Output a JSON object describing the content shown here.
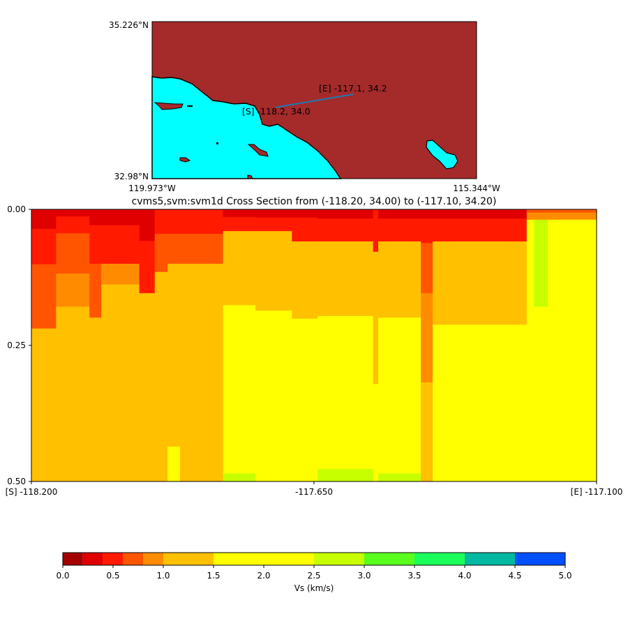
{
  "map": {
    "lat_top_label": "35.226°N",
    "lat_bottom_label": "32.98°N",
    "lon_left_label": "119.973°W",
    "lon_right_label": "115.344°W",
    "start_label": "[S] -118.2, 34.0",
    "end_label": "[E] -117.1, 34.2",
    "land_color": "#a52a2a",
    "water_color": "#00ffff",
    "line_color": "#1f77b4"
  },
  "chart_data": {
    "type": "heatmap",
    "title": "cvms5,svm:svm1d Cross Section from (-118.20, 34.00) to (-117.10, 34.20)",
    "xlim": [
      -118.2,
      -117.1
    ],
    "ylim": [
      0.0,
      0.5
    ],
    "y_inverted": true,
    "x_tick_labels": [
      "[S] -118.200",
      "-117.650",
      "[E] -117.100"
    ],
    "x_ticks": [
      -118.2,
      -117.65,
      -117.1
    ],
    "y_tick_labels": [
      "0.00",
      "0.25",
      "0.50"
    ],
    "y_ticks": [
      0.0,
      0.25,
      0.5
    ],
    "colorbar": {
      "label": "Vs (km/s)",
      "bounds": [
        0.0,
        0.2,
        0.4,
        0.6,
        0.8,
        1.0,
        1.5,
        2.5,
        3.0,
        3.5,
        4.0,
        4.5,
        5.0
      ],
      "colors": [
        "#a50000",
        "#e00000",
        "#ff1a00",
        "#ff5500",
        "#ff8c00",
        "#ffc000",
        "#ffff00",
        "#c8ff00",
        "#5aff1e",
        "#1aff5a",
        "#00b9a0",
        "#0050ff"
      ],
      "tick_labels": [
        "0.0",
        "0.5",
        "1.0",
        "1.5",
        "2.0",
        "2.5",
        "3.0",
        "3.5",
        "4.0",
        "4.5",
        "5.0"
      ],
      "ticks": [
        0.0,
        0.5,
        1.0,
        1.5,
        2.0,
        2.5,
        3.0,
        3.5,
        4.0,
        4.5,
        5.0
      ]
    },
    "columns": [
      {
        "lon": [
          -118.2,
          -118.152
        ],
        "layers": [
          [
            0.036,
            0.3
          ],
          [
            0.101,
            0.5
          ],
          [
            0.219,
            0.7
          ],
          [
            0.5,
            1.25
          ]
        ]
      },
      {
        "lon": [
          -118.152,
          -118.087
        ],
        "layers": [
          [
            0.013,
            0.3
          ],
          [
            0.044,
            0.5
          ],
          [
            0.118,
            0.7
          ],
          [
            0.179,
            0.9
          ],
          [
            0.5,
            1.25
          ]
        ]
      },
      {
        "lon": [
          -118.087,
          -118.064
        ],
        "layers": [
          [
            0.029,
            0.3
          ],
          [
            0.1,
            0.5
          ],
          [
            0.199,
            0.7
          ],
          [
            0.5,
            1.25
          ]
        ]
      },
      {
        "lon": [
          -118.064,
          -117.99
        ],
        "layers": [
          [
            0.029,
            0.3
          ],
          [
            0.1,
            0.5
          ],
          [
            0.138,
            0.9
          ],
          [
            0.5,
            1.25
          ]
        ]
      },
      {
        "lon": [
          -117.99,
          -117.96
        ],
        "layers": [
          [
            0.058,
            0.3
          ],
          [
            0.154,
            0.5
          ],
          [
            0.5,
            1.25
          ]
        ]
      },
      {
        "lon": [
          -117.96,
          -117.935
        ],
        "layers": [
          [
            0.045,
            0.5
          ],
          [
            0.115,
            0.7
          ],
          [
            0.5,
            1.25
          ]
        ]
      },
      {
        "lon": [
          -117.935,
          -117.911
        ],
        "layers": [
          [
            0.045,
            0.5
          ],
          [
            0.1,
            0.7
          ],
          [
            0.436,
            1.25
          ],
          [
            0.5,
            2.0
          ]
        ]
      },
      {
        "lon": [
          -117.911,
          -117.827
        ],
        "layers": [
          [
            0.045,
            0.5
          ],
          [
            0.1,
            0.7
          ],
          [
            0.5,
            1.25
          ]
        ]
      },
      {
        "lon": [
          -117.827,
          -117.764
        ],
        "layers": [
          [
            0.014,
            0.3
          ],
          [
            0.04,
            0.5
          ],
          [
            0.176,
            1.25
          ],
          [
            0.485,
            2.0
          ],
          [
            0.5,
            2.75
          ]
        ]
      },
      {
        "lon": [
          -117.764,
          -117.693
        ],
        "layers": [
          [
            0.015,
            0.3
          ],
          [
            0.04,
            0.5
          ],
          [
            0.186,
            1.25
          ],
          [
            0.5,
            2.0
          ]
        ]
      },
      {
        "lon": [
          -117.693,
          -117.643
        ],
        "layers": [
          [
            0.015,
            0.3
          ],
          [
            0.059,
            0.5
          ],
          [
            0.201,
            1.25
          ],
          [
            0.5,
            2.0
          ]
        ]
      },
      {
        "lon": [
          -117.643,
          -117.535
        ],
        "layers": [
          [
            0.017,
            0.3
          ],
          [
            0.059,
            0.5
          ],
          [
            0.196,
            1.25
          ],
          [
            0.477,
            2.0
          ],
          [
            0.5,
            2.75
          ]
        ]
      },
      {
        "lon": [
          -117.535,
          -117.525
        ],
        "layers": [
          [
            0.078,
            0.5
          ],
          [
            0.321,
            1.25
          ],
          [
            0.5,
            2.0
          ]
        ]
      },
      {
        "lon": [
          -117.525,
          -117.442
        ],
        "layers": [
          [
            0.017,
            0.3
          ],
          [
            0.059,
            0.5
          ],
          [
            0.199,
            1.25
          ],
          [
            0.485,
            2.0
          ],
          [
            0.5,
            2.75
          ]
        ]
      },
      {
        "lon": [
          -117.442,
          -117.419
        ],
        "layers": [
          [
            0.017,
            0.3
          ],
          [
            0.062,
            0.5
          ],
          [
            0.154,
            0.7
          ],
          [
            0.318,
            0.9
          ],
          [
            0.5,
            1.25
          ]
        ]
      },
      {
        "lon": [
          -117.419,
          -117.236
        ],
        "layers": [
          [
            0.017,
            0.3
          ],
          [
            0.059,
            0.5
          ],
          [
            0.212,
            1.25
          ],
          [
            0.5,
            2.0
          ]
        ]
      },
      {
        "lon": [
          -117.236,
          -117.222
        ],
        "layers": [
          [
            0.006,
            0.7
          ],
          [
            0.019,
            0.9
          ],
          [
            0.5,
            2.0
          ]
        ]
      },
      {
        "lon": [
          -117.222,
          -117.195
        ],
        "layers": [
          [
            0.006,
            0.7
          ],
          [
            0.019,
            0.9
          ],
          [
            0.179,
            2.75
          ],
          [
            0.5,
            2.0
          ]
        ]
      },
      {
        "lon": [
          -117.195,
          -117.1
        ],
        "layers": [
          [
            0.006,
            0.7
          ],
          [
            0.019,
            0.9
          ],
          [
            0.5,
            2.0
          ]
        ]
      }
    ]
  }
}
